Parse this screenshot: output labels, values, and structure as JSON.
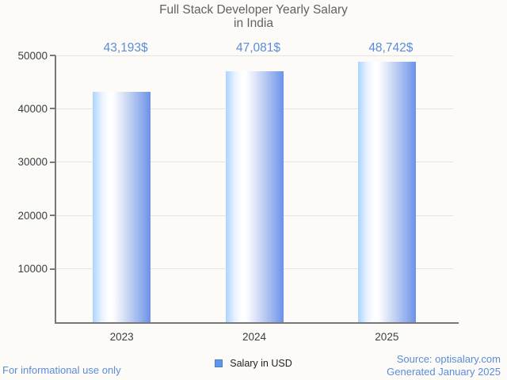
{
  "title": {
    "line1": "Full Stack Developer Yearly Salary",
    "line2": "in India"
  },
  "chart_data": {
    "type": "bar",
    "title": "Full Stack Developer Yearly Salary in India",
    "categories": [
      "2023",
      "2024",
      "2025"
    ],
    "series": [
      {
        "name": "Salary in USD",
        "values": [
          43193,
          47081,
          48742
        ]
      }
    ],
    "value_labels": [
      "43,193$",
      "47,081$",
      "48,742$"
    ],
    "xlabel": "",
    "ylabel": "",
    "ylim": [
      0,
      50000
    ],
    "yticks": [
      10000,
      20000,
      30000,
      40000,
      50000
    ],
    "ytick_labels": [
      "10000",
      "20000",
      "30000",
      "40000",
      "50000"
    ],
    "grid": true,
    "legend_position": "bottom"
  },
  "legend": {
    "label": "Salary in USD"
  },
  "footer": {
    "left": "For informational use only",
    "source": "Source: optisalary.com",
    "generated": "Generated January 2025"
  },
  "colors": {
    "background": "#FCFBF8",
    "accent_blue": "#5B8CD9",
    "bar_gradient_left": "#ABD4FE",
    "bar_gradient_mid": "#FFFFFF",
    "bar_gradient_right": "#6B92E9",
    "legend_fill": "#5E97E8",
    "legend_border": "#4A7FD0",
    "title_gray": "#616161",
    "axis_gray": "#787878",
    "grid_gray": "#E4E4E2",
    "tick_label_gray": "#3C4043"
  }
}
